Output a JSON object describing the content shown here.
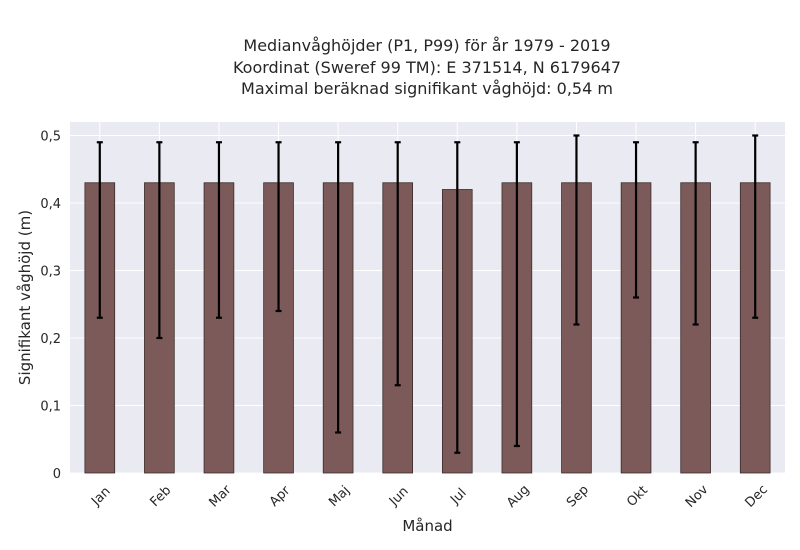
{
  "chart_data": {
    "type": "bar",
    "title_lines": [
      "Medianvåghöjder (P1, P99) för år 1979 - 2019",
      "Koordinat (Sweref 99 TM): E 371514, N 6179647",
      "Maximal beräknad signifikant våghöjd: 0,54 m"
    ],
    "xlabel": "Månad",
    "ylabel": "Signifikant våghöjd (m)",
    "categories": [
      "Jan",
      "Feb",
      "Mar",
      "Apr",
      "Maj",
      "Jun",
      "Jul",
      "Aug",
      "Sep",
      "Okt",
      "Nov",
      "Dec"
    ],
    "values": [
      0.43,
      0.43,
      0.43,
      0.43,
      0.43,
      0.43,
      0.42,
      0.43,
      0.43,
      0.43,
      0.43,
      0.43
    ],
    "error_low": [
      0.23,
      0.2,
      0.23,
      0.24,
      0.06,
      0.13,
      0.03,
      0.04,
      0.22,
      0.26,
      0.22,
      0.23
    ],
    "error_high": [
      0.49,
      0.49,
      0.49,
      0.49,
      0.49,
      0.49,
      0.49,
      0.49,
      0.5,
      0.49,
      0.49,
      0.5
    ],
    "ylim": [
      0,
      0.5
    ],
    "yticks": [
      0,
      0.1,
      0.2,
      0.3,
      0.4,
      0.5
    ],
    "ytick_labels": [
      "0",
      "0,1",
      "0,2",
      "0,3",
      "0,4",
      "0,5"
    ],
    "grid": true,
    "colors": {
      "bar": "#7d5a5a",
      "bar_edge": "#3a2b2b",
      "error": "#000000",
      "plot_bg": "#eaeaf2",
      "grid": "#ffffff"
    }
  }
}
